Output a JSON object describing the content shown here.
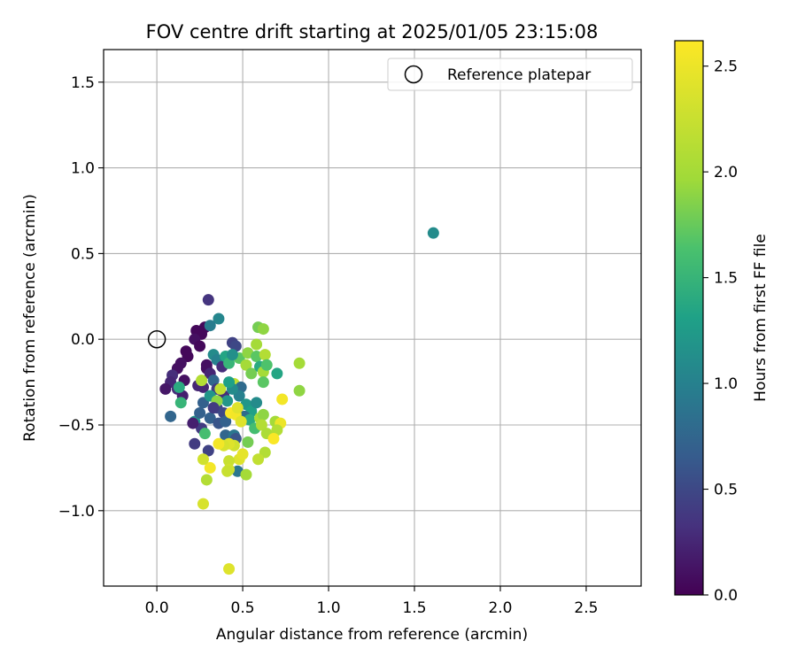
{
  "chart_data": {
    "type": "scatter",
    "title": "FOV centre drift starting at 2025/01/05 23:15:08",
    "xlabel": "Angular distance from reference (arcmin)",
    "ylabel": "Rotation from reference (arcmin)",
    "xlim": [
      -0.31,
      2.82
    ],
    "ylim": [
      -1.44,
      1.69
    ],
    "x_ticks": [
      0.0,
      0.5,
      1.0,
      1.5,
      2.0,
      2.5
    ],
    "x_tick_labels": [
      "0.0",
      "0.5",
      "1.0",
      "1.5",
      "2.0",
      "2.5"
    ],
    "y_ticks": [
      -1.0,
      -0.5,
      0.0,
      0.5,
      1.0,
      1.5
    ],
    "y_tick_labels": [
      "−1.0",
      "−0.5",
      "0.0",
      "0.5",
      "1.0",
      "1.5"
    ],
    "grid": true,
    "legend": {
      "position": "top-right",
      "entries": [
        "Reference platepar"
      ]
    },
    "reference_point": {
      "x": 0.0,
      "y": 0.0,
      "marker": "open-circle"
    },
    "colorbar": {
      "label": "Hours from first FF file",
      "colormap": "viridis",
      "range": [
        0.0,
        2.62
      ],
      "ticks": [
        0.0,
        0.5,
        1.0,
        1.5,
        2.0,
        2.5
      ],
      "tick_labels": [
        "0.0",
        "0.5",
        "1.0",
        "1.5",
        "2.0",
        "2.5"
      ]
    },
    "points": [
      [
        0.3,
        0.23,
        0.35
      ],
      [
        0.28,
        0.07,
        0.05
      ],
      [
        0.26,
        0.03,
        0.05
      ],
      [
        0.23,
        0.05,
        0.05
      ],
      [
        0.22,
        0.0,
        0.1
      ],
      [
        0.25,
        -0.04,
        0.05
      ],
      [
        0.17,
        -0.07,
        0.05
      ],
      [
        0.18,
        -0.1,
        0.05
      ],
      [
        0.14,
        -0.14,
        0.1
      ],
      [
        0.12,
        -0.17,
        0.1
      ],
      [
        0.09,
        -0.21,
        0.3
      ],
      [
        0.08,
        -0.25,
        0.25
      ],
      [
        0.05,
        -0.29,
        0.15
      ],
      [
        0.12,
        -0.29,
        0.3
      ],
      [
        0.16,
        -0.24,
        0.1
      ],
      [
        0.15,
        -0.33,
        0.2
      ],
      [
        0.08,
        -0.45,
        0.75
      ],
      [
        0.22,
        -0.48,
        1.2
      ],
      [
        0.26,
        -0.52,
        0.4
      ],
      [
        0.22,
        -0.61,
        0.4
      ],
      [
        0.3,
        -0.65,
        0.45
      ],
      [
        0.24,
        -0.27,
        0.25
      ],
      [
        0.27,
        -0.28,
        0.25
      ],
      [
        0.29,
        -0.17,
        0.1
      ],
      [
        0.29,
        -0.15,
        0.1
      ],
      [
        0.31,
        -0.2,
        0.25
      ],
      [
        0.33,
        -0.24,
        0.75
      ],
      [
        0.35,
        -0.29,
        0.4
      ],
      [
        0.27,
        -0.37,
        0.7
      ],
      [
        0.25,
        -0.43,
        0.7
      ],
      [
        0.31,
        -0.46,
        0.7
      ],
      [
        0.35,
        -0.4,
        0.5
      ],
      [
        0.39,
        -0.33,
        0.3
      ],
      [
        0.39,
        -0.43,
        0.5
      ],
      [
        0.36,
        -0.49,
        0.6
      ],
      [
        0.4,
        -0.56,
        0.75
      ],
      [
        0.4,
        -0.48,
        0.7
      ],
      [
        0.45,
        -0.56,
        0.9
      ],
      [
        0.47,
        -0.77,
        0.9
      ],
      [
        0.46,
        -0.58,
        0.6
      ],
      [
        0.36,
        0.12,
        1.05
      ],
      [
        0.31,
        0.08,
        0.95
      ],
      [
        0.33,
        -0.09,
        1.1
      ],
      [
        0.35,
        -0.12,
        1.0
      ],
      [
        0.38,
        -0.16,
        0.3
      ],
      [
        0.4,
        -0.1,
        1.35
      ],
      [
        0.42,
        -0.14,
        1.5
      ],
      [
        0.44,
        -0.02,
        0.45
      ],
      [
        0.46,
        -0.04,
        0.5
      ],
      [
        0.48,
        -0.11,
        1.7
      ],
      [
        0.52,
        -0.15,
        2.0
      ],
      [
        0.53,
        -0.08,
        1.9
      ],
      [
        0.55,
        -0.2,
        1.8
      ],
      [
        0.58,
        -0.1,
        1.7
      ],
      [
        0.6,
        -0.16,
        1.4
      ],
      [
        0.62,
        -0.19,
        2.0
      ],
      [
        0.62,
        -0.25,
        1.7
      ],
      [
        0.63,
        -0.09,
        2.1
      ],
      [
        0.58,
        -0.03,
        2.0
      ],
      [
        0.59,
        0.07,
        1.8
      ],
      [
        0.62,
        0.06,
        1.9
      ],
      [
        0.64,
        -0.15,
        1.65
      ],
      [
        0.7,
        -0.2,
        1.35
      ],
      [
        0.45,
        -0.26,
        2.2
      ],
      [
        0.49,
        -0.28,
        0.8
      ],
      [
        0.48,
        -0.33,
        1.0
      ],
      [
        0.44,
        -0.29,
        1.1
      ],
      [
        0.41,
        -0.36,
        1.2
      ],
      [
        0.52,
        -0.38,
        1.2
      ],
      [
        0.55,
        -0.42,
        1.3
      ],
      [
        0.58,
        -0.37,
        1.1
      ],
      [
        0.51,
        -0.45,
        0.8
      ],
      [
        0.54,
        -0.47,
        1.4
      ],
      [
        0.57,
        -0.52,
        1.6
      ],
      [
        0.6,
        -0.46,
        2.0
      ],
      [
        0.62,
        -0.44,
        1.9
      ],
      [
        0.61,
        -0.5,
        2.1
      ],
      [
        0.64,
        -0.55,
        2.05
      ],
      [
        0.69,
        -0.48,
        2.0
      ],
      [
        0.72,
        -0.49,
        2.5
      ],
      [
        0.7,
        -0.53,
        2.1
      ],
      [
        0.68,
        -0.58,
        2.6
      ],
      [
        0.63,
        -0.66,
        2.1
      ],
      [
        0.59,
        -0.7,
        2.2
      ],
      [
        0.52,
        -0.79,
        2.0
      ],
      [
        0.48,
        -0.7,
        2.4
      ],
      [
        0.5,
        -0.67,
        2.45
      ],
      [
        0.45,
        -0.62,
        2.3
      ],
      [
        0.42,
        -0.61,
        2.4
      ],
      [
        0.39,
        -0.62,
        2.35
      ],
      [
        0.36,
        -0.61,
        2.55
      ],
      [
        0.42,
        -0.71,
        2.25
      ],
      [
        0.42,
        -0.76,
        2.3
      ],
      [
        0.41,
        -0.77,
        2.25
      ],
      [
        0.31,
        -0.75,
        2.55
      ],
      [
        0.29,
        -0.82,
        2.1
      ],
      [
        0.27,
        -0.7,
        2.3
      ],
      [
        0.27,
        -0.96,
        2.35
      ],
      [
        0.42,
        -1.34,
        2.4
      ],
      [
        0.43,
        -0.43,
        2.6
      ],
      [
        0.46,
        -0.44,
        2.55
      ],
      [
        0.47,
        -0.4,
        2.4
      ],
      [
        0.49,
        -0.48,
        2.4
      ],
      [
        0.73,
        -0.35,
        2.55
      ],
      [
        0.83,
        -0.14,
        2.0
      ],
      [
        0.83,
        -0.3,
        1.9
      ],
      [
        0.26,
        -0.24,
        2.1
      ],
      [
        0.31,
        -0.33,
        1.2
      ],
      [
        0.21,
        -0.49,
        0.2
      ],
      [
        0.44,
        -0.09,
        1.15
      ],
      [
        0.37,
        -0.29,
        2.2
      ],
      [
        0.53,
        -0.6,
        1.8
      ],
      [
        0.42,
        -0.25,
        1.3
      ],
      [
        0.35,
        -0.36,
        1.9
      ],
      [
        0.28,
        -0.55,
        1.6
      ],
      [
        0.33,
        -0.4,
        0.4
      ],
      [
        0.13,
        -0.28,
        1.4
      ],
      [
        0.14,
        -0.37,
        1.5
      ],
      [
        1.61,
        0.62,
        1.1
      ]
    ]
  }
}
